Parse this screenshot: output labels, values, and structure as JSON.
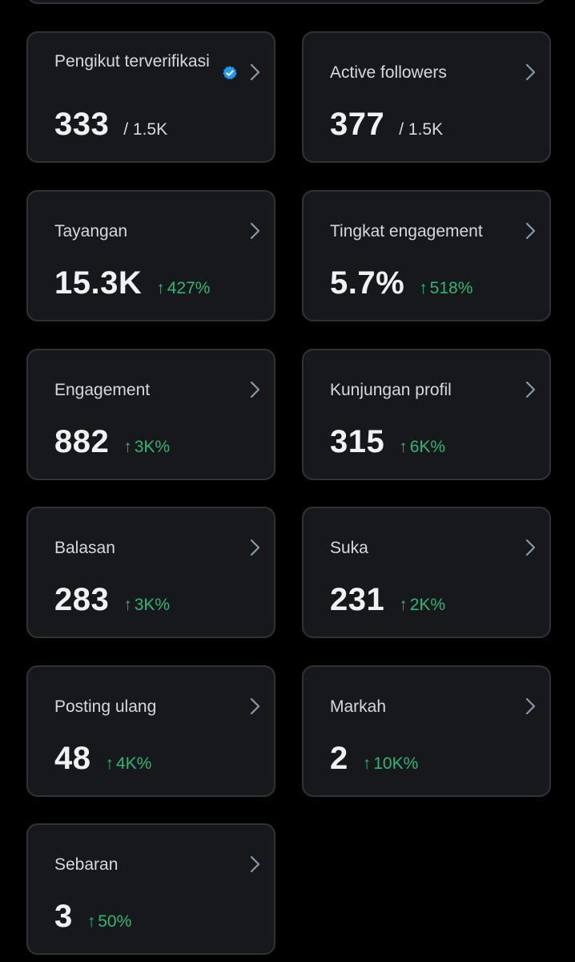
{
  "colors": {
    "background": "#000000",
    "card": "#16181c",
    "card_border": "#2f3336",
    "trend_up": "#2bb673",
    "verified": "#1d9bf0"
  },
  "icons": {
    "trend": "arrow-up-icon",
    "nav": "chevron-right-icon",
    "verified": "verified-badge-icon"
  },
  "cards": [
    {
      "id": "verified-followers",
      "label": "Pengikut terverifikasi",
      "value": "333",
      "denominator": "/ 1.5K"
    },
    {
      "id": "active-followers",
      "label": "Active followers",
      "value": "377",
      "denominator": "/ 1.5K"
    },
    {
      "id": "impressions",
      "label": "Tayangan",
      "value": "15.3K",
      "trend": "427%"
    },
    {
      "id": "engagement-rate",
      "label": "Tingkat engagement",
      "value": "5.7%",
      "trend": "518%"
    },
    {
      "id": "engagement",
      "label": "Engagement",
      "value": "882",
      "trend": "3K%"
    },
    {
      "id": "profile-visits",
      "label": "Kunjungan profil",
      "value": "315",
      "trend": "6K%"
    },
    {
      "id": "replies",
      "label": "Balasan",
      "value": "283",
      "trend": "3K%"
    },
    {
      "id": "likes",
      "label": "Suka",
      "value": "231",
      "trend": "2K%"
    },
    {
      "id": "reposts",
      "label": "Posting ulang",
      "value": "48",
      "trend": "4K%"
    },
    {
      "id": "bookmarks",
      "label": "Markah",
      "value": "2",
      "trend": "10K%"
    },
    {
      "id": "shares",
      "label": "Sebaran",
      "value": "3",
      "trend": "50%"
    }
  ]
}
